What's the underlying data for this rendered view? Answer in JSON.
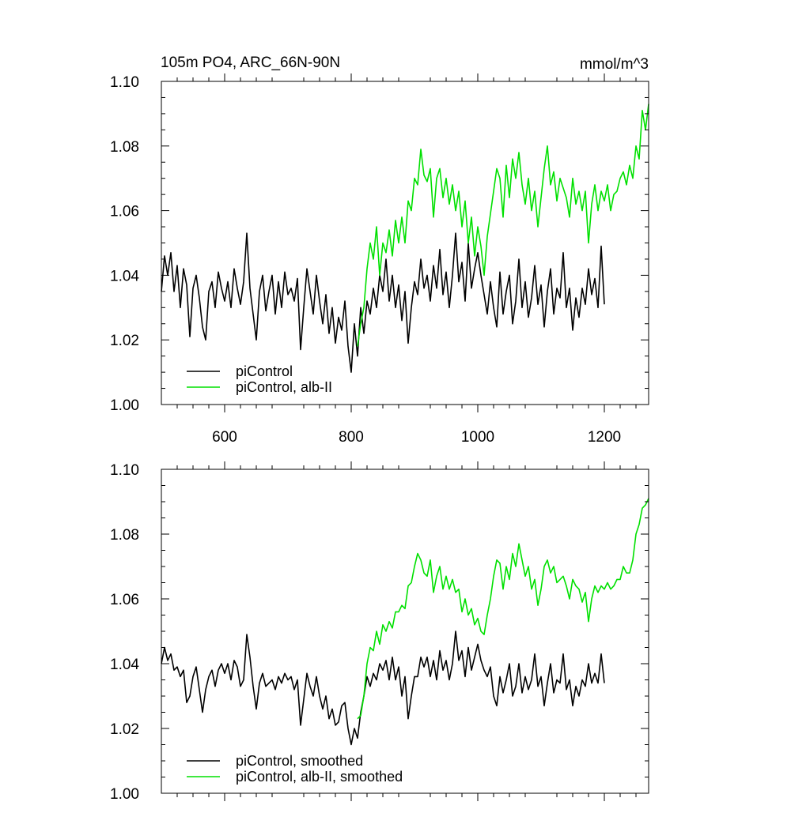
{
  "chart_data": [
    {
      "type": "line",
      "title": "105m PO4, ARC_66N-90N",
      "units": "mmol/m^3",
      "xlabel": "",
      "ylabel": "",
      "xlim": [
        500,
        1270
      ],
      "ylim": [
        1.0,
        1.1
      ],
      "x_ticks": [
        600,
        800,
        1000,
        1200
      ],
      "x_tick_labels": [
        "600",
        "800",
        "1000",
        "1200"
      ],
      "y_ticks": [
        1.0,
        1.02,
        1.04,
        1.06,
        1.08,
        1.1
      ],
      "y_tick_labels": [
        "1.00",
        "1.02",
        "1.04",
        "1.06",
        "1.08",
        "1.10"
      ],
      "legend_position": "bottom-left",
      "series": [
        {
          "name": "piControl",
          "color": "#000000",
          "x": [
            500,
            505,
            510,
            515,
            520,
            525,
            530,
            535,
            540,
            545,
            550,
            555,
            560,
            565,
            570,
            575,
            580,
            585,
            590,
            595,
            600,
            605,
            610,
            615,
            620,
            625,
            630,
            635,
            640,
            645,
            650,
            655,
            660,
            665,
            670,
            675,
            680,
            685,
            690,
            695,
            700,
            705,
            710,
            715,
            720,
            725,
            730,
            735,
            740,
            745,
            750,
            755,
            760,
            765,
            770,
            775,
            780,
            785,
            790,
            795,
            800,
            805,
            810,
            815,
            820,
            825,
            830,
            835,
            840,
            845,
            850,
            855,
            860,
            865,
            870,
            875,
            880,
            885,
            890,
            895,
            900,
            905,
            910,
            915,
            920,
            925,
            930,
            935,
            940,
            945,
            950,
            955,
            960,
            965,
            970,
            975,
            980,
            985,
            990,
            995,
            1000,
            1005,
            1010,
            1015,
            1020,
            1025,
            1030,
            1035,
            1040,
            1045,
            1050,
            1055,
            1060,
            1065,
            1070,
            1075,
            1080,
            1085,
            1090,
            1095,
            1100,
            1105,
            1110,
            1115,
            1120,
            1125,
            1130,
            1135,
            1140,
            1145,
            1150,
            1155,
            1160,
            1165,
            1170,
            1175,
            1180,
            1185,
            1190,
            1195,
            1200
          ],
          "y": [
            1.035,
            1.046,
            1.04,
            1.047,
            1.035,
            1.043,
            1.03,
            1.042,
            1.037,
            1.021,
            1.036,
            1.04,
            1.033,
            1.024,
            1.02,
            1.035,
            1.038,
            1.03,
            1.041,
            1.036,
            1.032,
            1.038,
            1.03,
            1.042,
            1.036,
            1.031,
            1.038,
            1.053,
            1.036,
            1.028,
            1.02,
            1.035,
            1.04,
            1.029,
            1.035,
            1.04,
            1.028,
            1.038,
            1.03,
            1.041,
            1.034,
            1.036,
            1.032,
            1.039,
            1.017,
            1.03,
            1.042,
            1.035,
            1.028,
            1.04,
            1.032,
            1.025,
            1.034,
            1.022,
            1.03,
            1.019,
            1.027,
            1.023,
            1.032,
            1.018,
            1.01,
            1.025,
            1.015,
            1.03,
            1.022,
            1.032,
            1.028,
            1.036,
            1.03,
            1.04,
            1.035,
            1.045,
            1.032,
            1.04,
            1.03,
            1.037,
            1.026,
            1.035,
            1.019,
            1.03,
            1.038,
            1.034,
            1.045,
            1.036,
            1.04,
            1.032,
            1.043,
            1.036,
            1.048,
            1.034,
            1.041,
            1.03,
            1.04,
            1.053,
            1.038,
            1.044,
            1.032,
            1.05,
            1.036,
            1.042,
            1.047,
            1.04,
            1.034,
            1.028,
            1.038,
            1.03,
            1.024,
            1.041,
            1.028,
            1.035,
            1.04,
            1.025,
            1.032,
            1.045,
            1.03,
            1.038,
            1.027,
            1.033,
            1.043,
            1.031,
            1.037,
            1.024,
            1.035,
            1.042,
            1.028,
            1.036,
            1.033,
            1.047,
            1.03,
            1.036,
            1.023,
            1.033,
            1.027,
            1.036,
            1.031,
            1.042,
            1.034,
            1.039,
            1.03,
            1.049,
            1.031
          ]
        },
        {
          "name": "piControl, alb-II",
          "color": "#00e000",
          "x": [
            810,
            815,
            820,
            825,
            830,
            835,
            840,
            845,
            850,
            855,
            860,
            865,
            870,
            875,
            880,
            885,
            890,
            895,
            900,
            905,
            910,
            915,
            920,
            925,
            930,
            935,
            940,
            945,
            950,
            955,
            960,
            965,
            970,
            975,
            980,
            985,
            990,
            995,
            1000,
            1005,
            1010,
            1015,
            1020,
            1025,
            1030,
            1035,
            1040,
            1045,
            1050,
            1055,
            1060,
            1065,
            1070,
            1075,
            1080,
            1085,
            1090,
            1095,
            1100,
            1105,
            1110,
            1115,
            1120,
            1125,
            1130,
            1135,
            1140,
            1145,
            1150,
            1155,
            1160,
            1165,
            1170,
            1175,
            1180,
            1185,
            1190,
            1195,
            1200,
            1205,
            1210,
            1215,
            1220,
            1225,
            1230,
            1235,
            1240,
            1245,
            1250,
            1255,
            1260,
            1265,
            1270
          ],
          "y": [
            1.018,
            1.025,
            1.03,
            1.042,
            1.05,
            1.045,
            1.055,
            1.04,
            1.05,
            1.047,
            1.054,
            1.046,
            1.057,
            1.05,
            1.058,
            1.05,
            1.063,
            1.06,
            1.07,
            1.068,
            1.079,
            1.071,
            1.069,
            1.073,
            1.058,
            1.07,
            1.073,
            1.064,
            1.07,
            1.062,
            1.068,
            1.06,
            1.066,
            1.055,
            1.063,
            1.05,
            1.058,
            1.046,
            1.055,
            1.049,
            1.04,
            1.052,
            1.059,
            1.066,
            1.073,
            1.07,
            1.058,
            1.074,
            1.064,
            1.076,
            1.07,
            1.078,
            1.068,
            1.062,
            1.07,
            1.06,
            1.066,
            1.055,
            1.064,
            1.073,
            1.08,
            1.068,
            1.072,
            1.063,
            1.07,
            1.067,
            1.064,
            1.058,
            1.07,
            1.062,
            1.066,
            1.06,
            1.066,
            1.05,
            1.062,
            1.068,
            1.06,
            1.066,
            1.063,
            1.068,
            1.06,
            1.065,
            1.066,
            1.07,
            1.072,
            1.068,
            1.074,
            1.07,
            1.08,
            1.076,
            1.091,
            1.085,
            1.093
          ]
        }
      ]
    },
    {
      "type": "line",
      "title": "",
      "xlabel": "",
      "ylabel": "",
      "xlim": [
        500,
        1270
      ],
      "ylim": [
        1.0,
        1.1
      ],
      "x_ticks": [
        600,
        800,
        1000,
        1200
      ],
      "x_tick_labels": [],
      "y_ticks": [
        1.0,
        1.02,
        1.04,
        1.06,
        1.08,
        1.1
      ],
      "y_tick_labels": [
        "1.00",
        "1.02",
        "1.04",
        "1.06",
        "1.08",
        "1.10"
      ],
      "legend_position": "bottom-left",
      "series": [
        {
          "name": "piControl, smoothed",
          "color": "#000000",
          "x": [
            500,
            505,
            510,
            515,
            520,
            525,
            530,
            535,
            540,
            545,
            550,
            555,
            560,
            565,
            570,
            575,
            580,
            585,
            590,
            595,
            600,
            605,
            610,
            615,
            620,
            625,
            630,
            635,
            640,
            645,
            650,
            655,
            660,
            665,
            670,
            675,
            680,
            685,
            690,
            695,
            700,
            705,
            710,
            715,
            720,
            725,
            730,
            735,
            740,
            745,
            750,
            755,
            760,
            765,
            770,
            775,
            780,
            785,
            790,
            795,
            800,
            805,
            810,
            815,
            820,
            825,
            830,
            835,
            840,
            845,
            850,
            855,
            860,
            865,
            870,
            875,
            880,
            885,
            890,
            895,
            900,
            905,
            910,
            915,
            920,
            925,
            930,
            935,
            940,
            945,
            950,
            955,
            960,
            965,
            970,
            975,
            980,
            985,
            990,
            995,
            1000,
            1005,
            1010,
            1015,
            1020,
            1025,
            1030,
            1035,
            1040,
            1045,
            1050,
            1055,
            1060,
            1065,
            1070,
            1075,
            1080,
            1085,
            1090,
            1095,
            1100,
            1105,
            1110,
            1115,
            1120,
            1125,
            1130,
            1135,
            1140,
            1145,
            1150,
            1155,
            1160,
            1165,
            1170,
            1175,
            1180,
            1185,
            1190,
            1195,
            1200
          ],
          "y": [
            1.04,
            1.045,
            1.041,
            1.043,
            1.038,
            1.039,
            1.036,
            1.038,
            1.028,
            1.03,
            1.036,
            1.039,
            1.032,
            1.025,
            1.032,
            1.036,
            1.038,
            1.033,
            1.038,
            1.04,
            1.037,
            1.04,
            1.035,
            1.041,
            1.039,
            1.033,
            1.035,
            1.049,
            1.042,
            1.033,
            1.026,
            1.034,
            1.037,
            1.033,
            1.034,
            1.035,
            1.032,
            1.036,
            1.034,
            1.037,
            1.035,
            1.036,
            1.032,
            1.035,
            1.021,
            1.029,
            1.037,
            1.033,
            1.03,
            1.036,
            1.03,
            1.026,
            1.03,
            1.023,
            1.026,
            1.021,
            1.022,
            1.027,
            1.028,
            1.02,
            1.015,
            1.02,
            1.017,
            1.025,
            1.03,
            1.036,
            1.033,
            1.037,
            1.035,
            1.04,
            1.038,
            1.041,
            1.035,
            1.042,
            1.035,
            1.039,
            1.03,
            1.036,
            1.023,
            1.03,
            1.036,
            1.036,
            1.042,
            1.039,
            1.042,
            1.036,
            1.041,
            1.035,
            1.044,
            1.038,
            1.041,
            1.035,
            1.04,
            1.05,
            1.041,
            1.044,
            1.036,
            1.045,
            1.038,
            1.042,
            1.046,
            1.041,
            1.038,
            1.036,
            1.039,
            1.03,
            1.027,
            1.036,
            1.031,
            1.035,
            1.04,
            1.03,
            1.033,
            1.04,
            1.031,
            1.036,
            1.032,
            1.035,
            1.043,
            1.033,
            1.036,
            1.027,
            1.034,
            1.04,
            1.031,
            1.035,
            1.034,
            1.043,
            1.032,
            1.035,
            1.027,
            1.033,
            1.03,
            1.035,
            1.033,
            1.04,
            1.034,
            1.037,
            1.034,
            1.043,
            1.034
          ]
        },
        {
          "name": "piControl, alb-II, smoothed",
          "color": "#00e000",
          "x": [
            810,
            815,
            820,
            825,
            830,
            835,
            840,
            845,
            850,
            855,
            860,
            865,
            870,
            875,
            880,
            885,
            890,
            895,
            900,
            905,
            910,
            915,
            920,
            925,
            930,
            935,
            940,
            945,
            950,
            955,
            960,
            965,
            970,
            975,
            980,
            985,
            990,
            995,
            1000,
            1005,
            1010,
            1015,
            1020,
            1025,
            1030,
            1035,
            1040,
            1045,
            1050,
            1055,
            1060,
            1065,
            1070,
            1075,
            1080,
            1085,
            1090,
            1095,
            1100,
            1105,
            1110,
            1115,
            1120,
            1125,
            1130,
            1135,
            1140,
            1145,
            1150,
            1155,
            1160,
            1165,
            1170,
            1175,
            1180,
            1185,
            1190,
            1195,
            1200,
            1205,
            1210,
            1215,
            1220,
            1225,
            1230,
            1235,
            1240,
            1245,
            1250,
            1255,
            1260,
            1265,
            1270
          ],
          "y": [
            1.023,
            1.024,
            1.03,
            1.04,
            1.045,
            1.044,
            1.05,
            1.046,
            1.052,
            1.05,
            1.053,
            1.051,
            1.056,
            1.056,
            1.058,
            1.057,
            1.064,
            1.065,
            1.07,
            1.074,
            1.072,
            1.068,
            1.067,
            1.072,
            1.062,
            1.067,
            1.07,
            1.063,
            1.067,
            1.063,
            1.066,
            1.062,
            1.063,
            1.056,
            1.06,
            1.055,
            1.057,
            1.052,
            1.054,
            1.05,
            1.049,
            1.055,
            1.06,
            1.067,
            1.072,
            1.071,
            1.063,
            1.07,
            1.066,
            1.074,
            1.07,
            1.077,
            1.072,
            1.067,
            1.07,
            1.063,
            1.066,
            1.058,
            1.063,
            1.07,
            1.072,
            1.068,
            1.07,
            1.065,
            1.066,
            1.067,
            1.064,
            1.06,
            1.066,
            1.064,
            1.063,
            1.059,
            1.062,
            1.053,
            1.06,
            1.064,
            1.062,
            1.064,
            1.063,
            1.065,
            1.063,
            1.064,
            1.066,
            1.066,
            1.07,
            1.068,
            1.068,
            1.072,
            1.08,
            1.083,
            1.088,
            1.089,
            1.091
          ]
        }
      ]
    }
  ]
}
